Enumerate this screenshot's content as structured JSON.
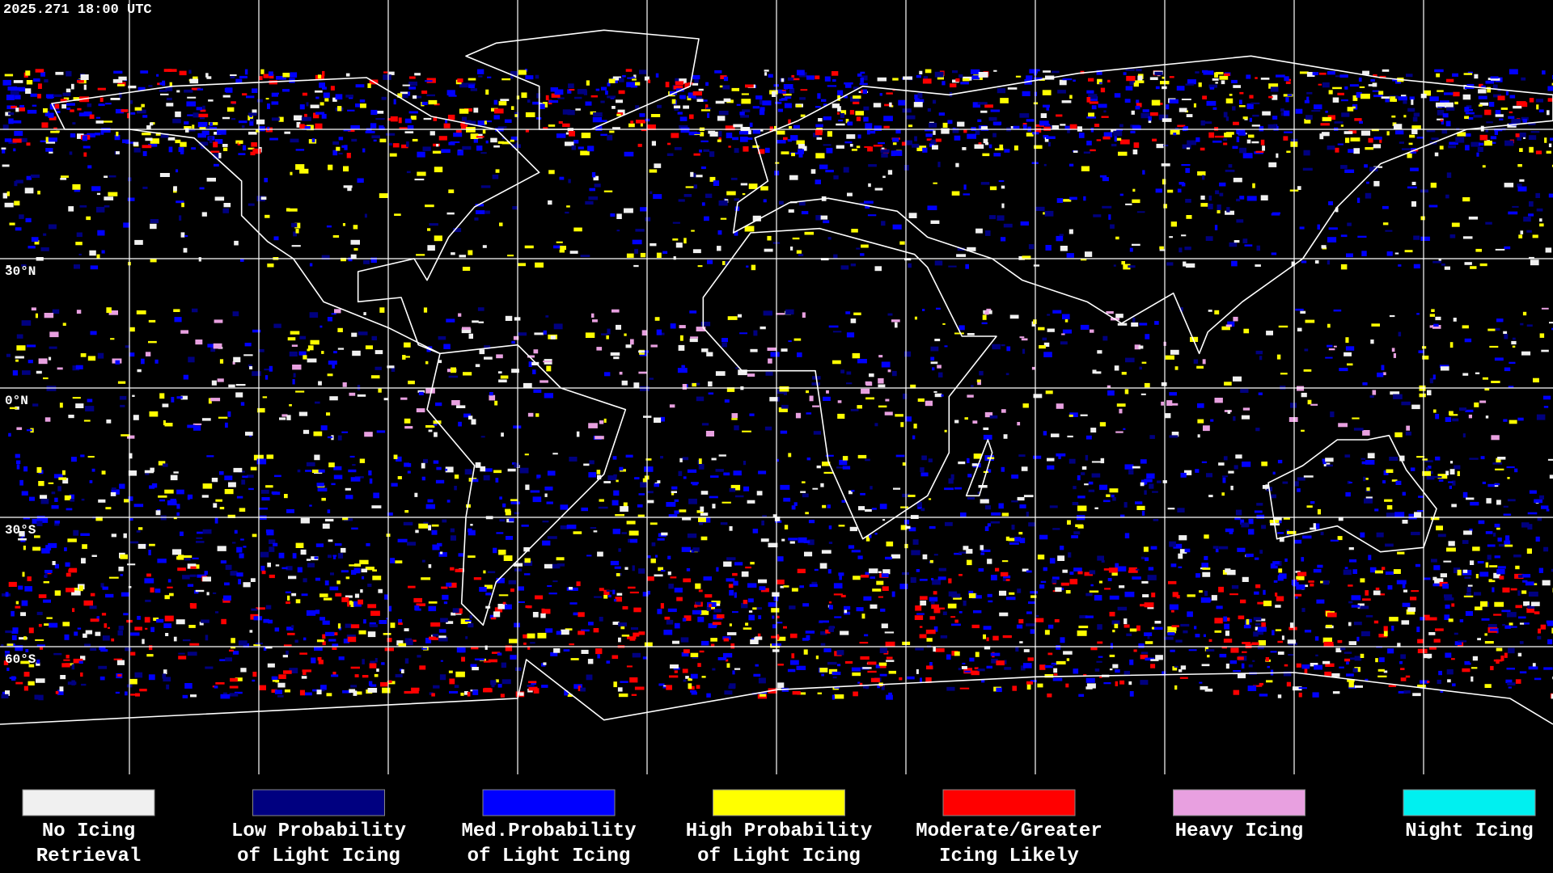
{
  "header": {
    "timestamp": "2025.271 18:00 UTC"
  },
  "map": {
    "lat_labels": [
      "30°N",
      "0°N",
      "30°S",
      "60°S"
    ]
  },
  "legend": [
    {
      "lines": [
        "No Icing",
        "Retrieval"
      ],
      "color": "#f0f0f0"
    },
    {
      "lines": [
        "Low Probability",
        "of Light Icing"
      ],
      "color": "#000080"
    },
    {
      "lines": [
        "Med.Probability",
        "of Light Icing"
      ],
      "color": "#0000ff"
    },
    {
      "lines": [
        "High Probability",
        "of Light Icing"
      ],
      "color": "#ffff00"
    },
    {
      "lines": [
        "Moderate/Greater",
        "Icing Likely"
      ],
      "color": "#ff0000"
    },
    {
      "lines": [
        "Heavy Icing"
      ],
      "color": "#e8a0e0"
    },
    {
      "lines": [
        "Night Icing"
      ],
      "color": "#00f0f0"
    }
  ]
}
